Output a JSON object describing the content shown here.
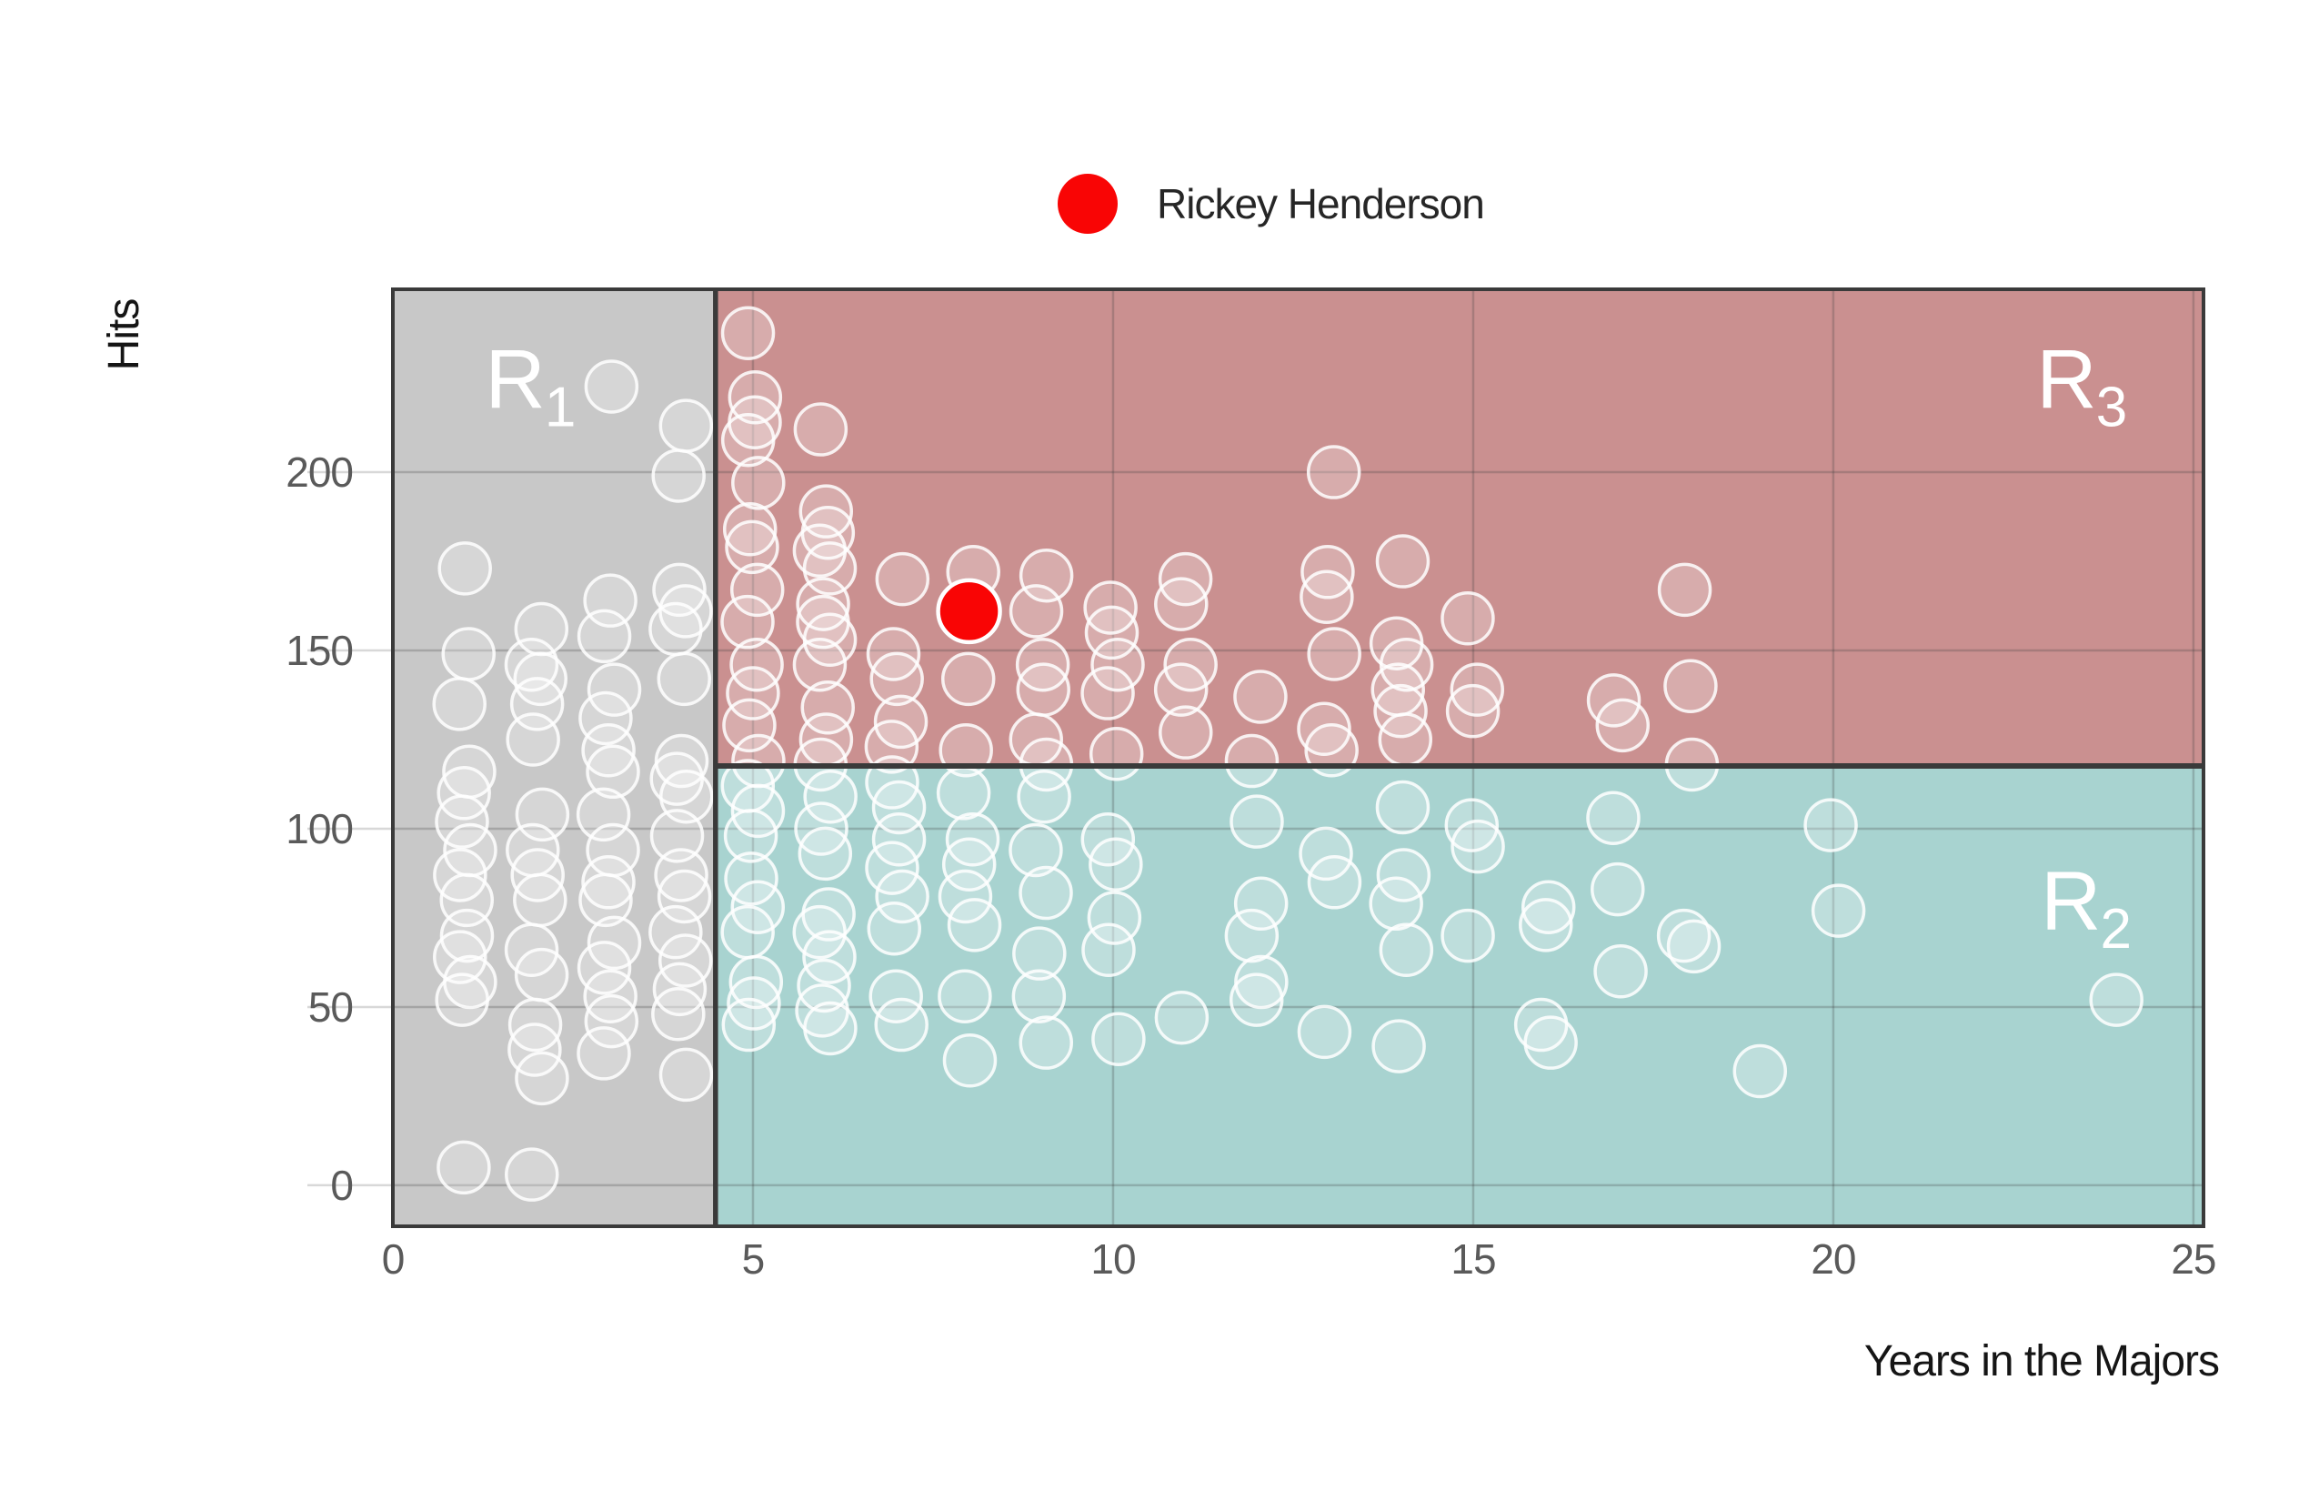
{
  "page": {
    "background": "#ffffff"
  },
  "legend": {
    "label": "Rickey Henderson",
    "marker_color": "#f90505"
  },
  "chart_data": {
    "type": "scatter",
    "title": "",
    "xlabel": "Years in the Majors",
    "ylabel": "Hits",
    "xlim": [
      0,
      25.14
    ],
    "ylim": [
      -11.5,
      251.3
    ],
    "x_ticks": [
      0,
      5,
      10,
      15,
      20,
      25
    ],
    "y_ticks": [
      0,
      50,
      100,
      150,
      200
    ],
    "grid": true,
    "legend_position": "top-center",
    "regions": [
      {
        "id": "R1",
        "label_base": "R",
        "label_sub": "1",
        "x0": 0,
        "x1": 4.48,
        "y0": -11.5,
        "y1": 251.3,
        "fill": "#c8c8c8",
        "label_x": 1.28,
        "label_y": 218
      },
      {
        "id": "R3",
        "label_base": "R",
        "label_sub": "3",
        "x0": 4.48,
        "x1": 25.14,
        "y0": 117.6,
        "y1": 251.3,
        "fill": "#ca9090",
        "label_x": 22.82,
        "label_y": 218
      },
      {
        "id": "R2",
        "label_base": "R",
        "label_sub": "2",
        "x0": 4.48,
        "x1": 25.14,
        "y0": -11.5,
        "y1": 117.6,
        "fill": "#a8d3d0",
        "label_x": 22.88,
        "label_y": 71.7
      }
    ],
    "boundaries": {
      "x_split": 4.48,
      "y_split": 117.6,
      "line_color": "#3a3a3a"
    },
    "highlight_point": {
      "label": "Rickey Henderson",
      "x": 8,
      "y": 161,
      "color": "#f90505"
    },
    "points": [
      [
        1,
        173
      ],
      [
        1,
        149
      ],
      [
        1,
        135
      ],
      [
        1,
        116
      ],
      [
        1,
        110
      ],
      [
        1,
        102
      ],
      [
        1,
        94
      ],
      [
        1,
        87
      ],
      [
        1,
        80
      ],
      [
        1,
        70
      ],
      [
        1,
        64
      ],
      [
        1,
        57
      ],
      [
        1,
        52
      ],
      [
        1,
        5
      ],
      [
        2,
        156
      ],
      [
        2,
        146
      ],
      [
        2,
        142
      ],
      [
        2,
        135
      ],
      [
        2,
        125
      ],
      [
        2,
        104
      ],
      [
        2,
        94
      ],
      [
        2,
        87
      ],
      [
        2,
        80
      ],
      [
        2,
        66
      ],
      [
        2,
        59
      ],
      [
        2,
        45
      ],
      [
        2,
        38
      ],
      [
        2,
        30
      ],
      [
        2,
        3
      ],
      [
        3,
        224
      ],
      [
        3,
        164
      ],
      [
        3,
        154
      ],
      [
        3,
        139
      ],
      [
        3,
        131
      ],
      [
        3,
        122
      ],
      [
        3,
        116
      ],
      [
        3,
        104
      ],
      [
        3,
        94
      ],
      [
        3,
        85
      ],
      [
        3,
        80
      ],
      [
        3,
        68
      ],
      [
        3,
        61
      ],
      [
        3,
        53
      ],
      [
        3,
        46
      ],
      [
        3,
        37
      ],
      [
        4,
        213
      ],
      [
        4,
        199
      ],
      [
        4,
        167
      ],
      [
        4,
        161
      ],
      [
        4,
        156
      ],
      [
        4,
        142
      ],
      [
        4,
        119
      ],
      [
        4,
        114
      ],
      [
        4,
        109
      ],
      [
        4,
        98
      ],
      [
        4,
        87
      ],
      [
        4,
        81
      ],
      [
        4,
        71
      ],
      [
        4,
        63
      ],
      [
        4,
        55
      ],
      [
        4,
        48
      ],
      [
        4,
        31
      ],
      [
        5,
        239
      ],
      [
        5,
        221
      ],
      [
        5,
        214
      ],
      [
        5,
        209
      ],
      [
        5,
        197
      ],
      [
        5,
        184
      ],
      [
        5,
        179
      ],
      [
        5,
        167
      ],
      [
        5,
        158
      ],
      [
        5,
        146
      ],
      [
        5,
        138
      ],
      [
        5,
        129
      ],
      [
        5,
        119
      ],
      [
        6,
        212
      ],
      [
        6,
        189
      ],
      [
        6,
        183
      ],
      [
        6,
        178
      ],
      [
        6,
        173
      ],
      [
        6,
        163
      ],
      [
        6,
        158
      ],
      [
        6,
        153
      ],
      [
        6,
        146
      ],
      [
        6,
        134
      ],
      [
        6,
        125
      ],
      [
        6,
        118
      ],
      [
        7,
        170
      ],
      [
        7,
        149
      ],
      [
        7,
        142
      ],
      [
        7,
        130
      ],
      [
        7,
        123
      ],
      [
        8,
        172
      ],
      [
        8,
        142
      ],
      [
        8,
        122
      ],
      [
        9,
        171
      ],
      [
        9,
        161
      ],
      [
        9,
        146
      ],
      [
        9,
        139
      ],
      [
        9,
        125
      ],
      [
        9,
        118
      ],
      [
        10,
        162
      ],
      [
        10,
        155
      ],
      [
        10,
        146
      ],
      [
        10,
        138
      ],
      [
        10,
        121
      ],
      [
        11,
        170
      ],
      [
        11,
        163
      ],
      [
        11,
        146
      ],
      [
        11,
        139
      ],
      [
        11,
        127
      ],
      [
        12,
        137
      ],
      [
        12,
        119
      ],
      [
        13,
        200
      ],
      [
        13,
        172
      ],
      [
        13,
        165
      ],
      [
        13,
        149
      ],
      [
        13,
        128
      ],
      [
        13,
        122
      ],
      [
        14,
        175
      ],
      [
        14,
        152
      ],
      [
        14,
        146
      ],
      [
        14,
        139
      ],
      [
        14,
        133
      ],
      [
        14,
        125
      ],
      [
        15,
        159
      ],
      [
        15,
        139
      ],
      [
        15,
        133
      ],
      [
        17,
        136
      ],
      [
        17,
        129
      ],
      [
        18,
        167
      ],
      [
        18,
        140
      ],
      [
        18,
        118
      ],
      [
        5,
        112
      ],
      [
        5,
        105
      ],
      [
        5,
        98
      ],
      [
        5,
        86
      ],
      [
        5,
        78
      ],
      [
        5,
        71
      ],
      [
        5,
        57
      ],
      [
        5,
        51
      ],
      [
        5,
        45
      ],
      [
        6,
        109
      ],
      [
        6,
        100
      ],
      [
        6,
        93
      ],
      [
        6,
        76
      ],
      [
        6,
        71
      ],
      [
        6,
        64
      ],
      [
        6,
        56
      ],
      [
        6,
        49
      ],
      [
        6,
        44
      ],
      [
        7,
        113
      ],
      [
        7,
        106
      ],
      [
        7,
        97
      ],
      [
        7,
        89
      ],
      [
        7,
        81
      ],
      [
        7,
        72
      ],
      [
        7,
        53
      ],
      [
        7,
        45
      ],
      [
        8,
        110
      ],
      [
        8,
        97
      ],
      [
        8,
        90
      ],
      [
        8,
        81
      ],
      [
        8,
        73
      ],
      [
        8,
        53
      ],
      [
        8,
        35
      ],
      [
        9,
        109
      ],
      [
        9,
        94
      ],
      [
        9,
        82
      ],
      [
        9,
        65
      ],
      [
        9,
        53
      ],
      [
        9,
        40
      ],
      [
        10,
        97
      ],
      [
        10,
        90
      ],
      [
        10,
        75
      ],
      [
        10,
        66
      ],
      [
        10,
        41
      ],
      [
        11,
        47
      ],
      [
        12,
        102
      ],
      [
        12,
        79
      ],
      [
        12,
        70
      ],
      [
        12,
        57
      ],
      [
        12,
        52
      ],
      [
        13,
        93
      ],
      [
        13,
        85
      ],
      [
        13,
        43
      ],
      [
        14,
        106
      ],
      [
        14,
        87
      ],
      [
        14,
        79
      ],
      [
        14,
        66
      ],
      [
        14,
        39
      ],
      [
        15,
        101
      ],
      [
        15,
        95
      ],
      [
        15,
        70
      ],
      [
        16,
        78
      ],
      [
        16,
        73
      ],
      [
        16,
        45
      ],
      [
        16,
        40
      ],
      [
        17,
        103
      ],
      [
        17,
        83
      ],
      [
        17,
        60
      ],
      [
        18,
        70
      ],
      [
        18,
        67
      ],
      [
        19,
        32
      ],
      [
        20,
        101
      ],
      [
        20,
        77
      ],
      [
        24,
        52
      ]
    ]
  },
  "style": {
    "point_stroke": "rgba(255,255,255,0.85)",
    "point_fill": "rgba(255,255,255,0.25)",
    "grid_inner": "rgba(60,60,60,0.25)",
    "grid_stub": "#d8d8d8",
    "panel_border": "#3a3a3a",
    "tick_color": "#5a5a5a"
  }
}
